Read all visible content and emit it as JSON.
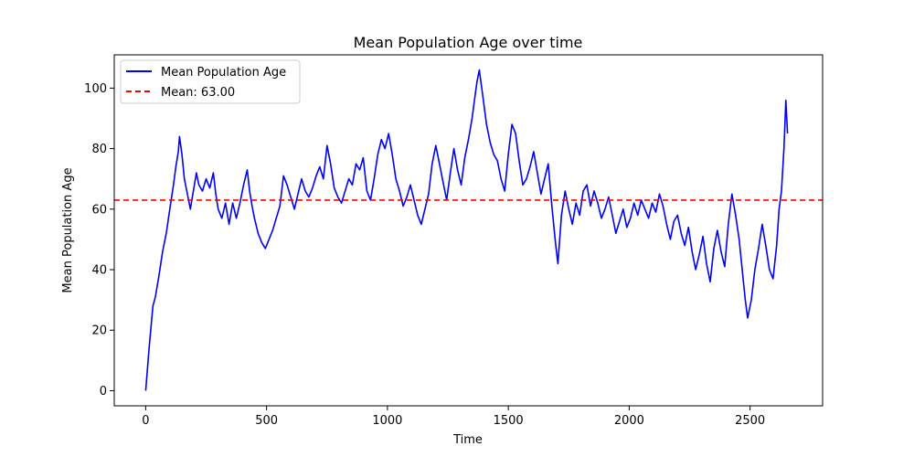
{
  "chart_data": {
    "type": "line",
    "title": "Mean Population Age over time",
    "xlabel": "Time",
    "ylabel": "Mean Population Age",
    "xlim": [
      -130,
      2800
    ],
    "ylim": [
      -5,
      111
    ],
    "xticks": [
      0,
      500,
      1000,
      1500,
      2000,
      2500
    ],
    "yticks": [
      0,
      20,
      40,
      60,
      80,
      100
    ],
    "grid": false,
    "legend_position": "upper-left",
    "series": [
      {
        "name": "Mean Population Age",
        "color": "#0000ff",
        "style": "solid",
        "points": [
          [
            0,
            0
          ],
          [
            15,
            15
          ],
          [
            30,
            28
          ],
          [
            40,
            31
          ],
          [
            55,
            38
          ],
          [
            70,
            46
          ],
          [
            85,
            52
          ],
          [
            100,
            60
          ],
          [
            115,
            68
          ],
          [
            125,
            74
          ],
          [
            135,
            79
          ],
          [
            140,
            84
          ],
          [
            150,
            78
          ],
          [
            160,
            70
          ],
          [
            175,
            64
          ],
          [
            185,
            60
          ],
          [
            195,
            65
          ],
          [
            210,
            72
          ],
          [
            220,
            68
          ],
          [
            235,
            66
          ],
          [
            250,
            70
          ],
          [
            265,
            67
          ],
          [
            280,
            72
          ],
          [
            290,
            65
          ],
          [
            300,
            60
          ],
          [
            315,
            57
          ],
          [
            330,
            62
          ],
          [
            345,
            55
          ],
          [
            360,
            62
          ],
          [
            375,
            57
          ],
          [
            390,
            62
          ],
          [
            405,
            68
          ],
          [
            420,
            73
          ],
          [
            430,
            66
          ],
          [
            440,
            61
          ],
          [
            450,
            57
          ],
          [
            465,
            52
          ],
          [
            480,
            49
          ],
          [
            495,
            47
          ],
          [
            510,
            50
          ],
          [
            525,
            53
          ],
          [
            540,
            57
          ],
          [
            555,
            61
          ],
          [
            570,
            71
          ],
          [
            585,
            68
          ],
          [
            600,
            64
          ],
          [
            615,
            60
          ],
          [
            630,
            65
          ],
          [
            645,
            70
          ],
          [
            660,
            66
          ],
          [
            675,
            64
          ],
          [
            690,
            67
          ],
          [
            705,
            71
          ],
          [
            720,
            74
          ],
          [
            735,
            70
          ],
          [
            750,
            81
          ],
          [
            765,
            75
          ],
          [
            780,
            67
          ],
          [
            795,
            64
          ],
          [
            810,
            62
          ],
          [
            825,
            66
          ],
          [
            840,
            70
          ],
          [
            855,
            68
          ],
          [
            870,
            75
          ],
          [
            885,
            73
          ],
          [
            900,
            77
          ],
          [
            915,
            66
          ],
          [
            930,
            63
          ],
          [
            945,
            70
          ],
          [
            960,
            78
          ],
          [
            975,
            83
          ],
          [
            990,
            80
          ],
          [
            1005,
            85
          ],
          [
            1020,
            78
          ],
          [
            1035,
            70
          ],
          [
            1050,
            66
          ],
          [
            1065,
            61
          ],
          [
            1080,
            64
          ],
          [
            1095,
            68
          ],
          [
            1110,
            63
          ],
          [
            1125,
            58
          ],
          [
            1140,
            55
          ],
          [
            1155,
            60
          ],
          [
            1170,
            65
          ],
          [
            1185,
            75
          ],
          [
            1200,
            81
          ],
          [
            1215,
            75
          ],
          [
            1230,
            69
          ],
          [
            1245,
            63
          ],
          [
            1260,
            72
          ],
          [
            1275,
            80
          ],
          [
            1290,
            73
          ],
          [
            1305,
            68
          ],
          [
            1320,
            77
          ],
          [
            1335,
            83
          ],
          [
            1350,
            90
          ],
          [
            1360,
            96
          ],
          [
            1370,
            102
          ],
          [
            1380,
            106
          ],
          [
            1395,
            97
          ],
          [
            1410,
            88
          ],
          [
            1425,
            82
          ],
          [
            1440,
            78
          ],
          [
            1455,
            76
          ],
          [
            1470,
            70
          ],
          [
            1485,
            66
          ],
          [
            1500,
            78
          ],
          [
            1515,
            88
          ],
          [
            1530,
            85
          ],
          [
            1545,
            76
          ],
          [
            1560,
            68
          ],
          [
            1575,
            70
          ],
          [
            1590,
            74
          ],
          [
            1605,
            79
          ],
          [
            1620,
            72
          ],
          [
            1635,
            65
          ],
          [
            1650,
            70
          ],
          [
            1665,
            75
          ],
          [
            1680,
            61
          ],
          [
            1695,
            49
          ],
          [
            1705,
            42
          ],
          [
            1720,
            58
          ],
          [
            1735,
            66
          ],
          [
            1750,
            60
          ],
          [
            1765,
            55
          ],
          [
            1780,
            62
          ],
          [
            1795,
            58
          ],
          [
            1810,
            66
          ],
          [
            1825,
            68
          ],
          [
            1840,
            61
          ],
          [
            1855,
            66
          ],
          [
            1870,
            62
          ],
          [
            1885,
            57
          ],
          [
            1900,
            60
          ],
          [
            1915,
            64
          ],
          [
            1930,
            58
          ],
          [
            1945,
            52
          ],
          [
            1960,
            56
          ],
          [
            1975,
            60
          ],
          [
            1990,
            54
          ],
          [
            2005,
            57
          ],
          [
            2020,
            62
          ],
          [
            2035,
            58
          ],
          [
            2050,
            63
          ],
          [
            2065,
            60
          ],
          [
            2080,
            57
          ],
          [
            2095,
            62
          ],
          [
            2110,
            59
          ],
          [
            2125,
            65
          ],
          [
            2140,
            61
          ],
          [
            2155,
            55
          ],
          [
            2170,
            50
          ],
          [
            2185,
            56
          ],
          [
            2200,
            58
          ],
          [
            2215,
            52
          ],
          [
            2230,
            48
          ],
          [
            2245,
            54
          ],
          [
            2260,
            46
          ],
          [
            2275,
            40
          ],
          [
            2290,
            45
          ],
          [
            2305,
            51
          ],
          [
            2320,
            42
          ],
          [
            2335,
            36
          ],
          [
            2350,
            47
          ],
          [
            2365,
            53
          ],
          [
            2380,
            46
          ],
          [
            2395,
            41
          ],
          [
            2410,
            55
          ],
          [
            2425,
            65
          ],
          [
            2440,
            58
          ],
          [
            2455,
            50
          ],
          [
            2470,
            38
          ],
          [
            2480,
            30
          ],
          [
            2490,
            24
          ],
          [
            2505,
            30
          ],
          [
            2520,
            40
          ],
          [
            2535,
            47
          ],
          [
            2550,
            55
          ],
          [
            2565,
            48
          ],
          [
            2580,
            40
          ],
          [
            2595,
            37
          ],
          [
            2610,
            48
          ],
          [
            2620,
            60
          ],
          [
            2630,
            66
          ],
          [
            2640,
            80
          ],
          [
            2648,
            96
          ],
          [
            2655,
            85
          ]
        ]
      },
      {
        "name": "Mean: 63.00",
        "color": "#ff0000",
        "style": "dashed",
        "y": 63
      }
    ]
  }
}
